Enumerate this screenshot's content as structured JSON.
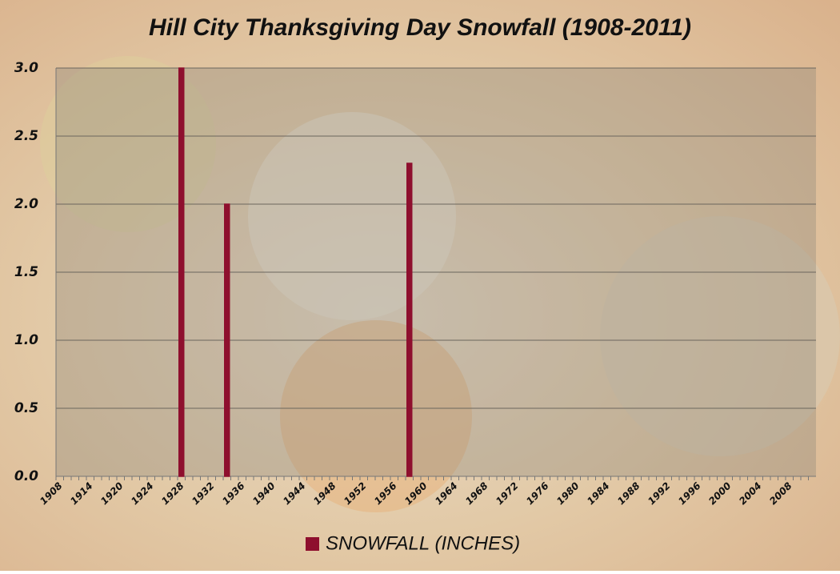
{
  "chart_data": {
    "type": "bar",
    "title": "Hill City Thanksgiving Day Snowfall (1908-2011)",
    "categories": [
      "1908",
      null,
      null,
      null,
      "1914",
      null,
      null,
      null,
      "1920",
      null,
      null,
      null,
      "1924",
      null,
      null,
      null,
      "1928",
      null,
      null,
      null,
      "1932",
      null,
      null,
      null,
      "1936",
      null,
      null,
      null,
      "1940",
      null,
      null,
      null,
      "1944",
      null,
      null,
      null,
      "1948",
      null,
      null,
      null,
      "1952",
      null,
      null,
      null,
      "1956",
      null,
      null,
      null,
      "1960",
      null,
      null,
      null,
      "1964",
      null,
      null,
      null,
      "1968",
      null,
      null,
      null,
      "1972",
      null,
      null,
      null,
      "1976",
      null,
      null,
      null,
      "1980",
      null,
      null,
      null,
      "1984",
      null,
      null,
      null,
      "1988",
      null,
      null,
      null,
      "1992",
      null,
      null,
      null,
      "1996",
      null,
      null,
      null,
      "2000",
      null,
      null,
      null,
      "2004",
      null,
      null,
      null,
      "2008",
      null,
      null,
      null
    ],
    "series": [
      {
        "name": "SNOWFALL (INCHES)",
        "color": "#8e0f2e",
        "values": [
          0,
          0,
          0,
          0,
          0,
          0,
          0,
          0,
          0,
          0,
          0,
          0,
          0,
          0,
          0,
          0,
          3.0,
          0,
          0,
          0,
          0,
          0,
          2.0,
          0,
          0,
          0,
          0,
          0,
          0,
          0,
          0,
          0,
          0,
          0,
          0,
          0,
          0,
          0,
          0,
          0,
          0,
          0,
          0,
          0,
          0,
          0,
          2.3,
          0,
          0,
          0,
          0,
          0,
          0,
          0,
          0,
          0,
          0,
          0,
          0,
          0,
          0,
          0,
          0,
          0,
          0,
          0,
          0,
          0,
          0,
          0,
          0,
          0,
          0,
          0,
          0,
          0,
          0,
          0,
          0,
          0,
          0,
          0,
          0,
          0,
          0,
          0,
          0,
          0,
          0,
          0,
          0,
          0,
          0,
          0,
          0,
          0,
          0,
          0,
          0,
          0
        ]
      }
    ],
    "ylim": [
      0,
      3
    ],
    "yticks": [
      {
        "value": 0,
        "label": "0.0"
      },
      0.5,
      {
        "value": 1,
        "label": "1.0"
      },
      1.5,
      {
        "value": 2,
        "label": "2.0"
      },
      2.5,
      {
        "value": 3,
        "label": "3.0"
      }
    ],
    "grid": true,
    "legend": "bottom"
  }
}
